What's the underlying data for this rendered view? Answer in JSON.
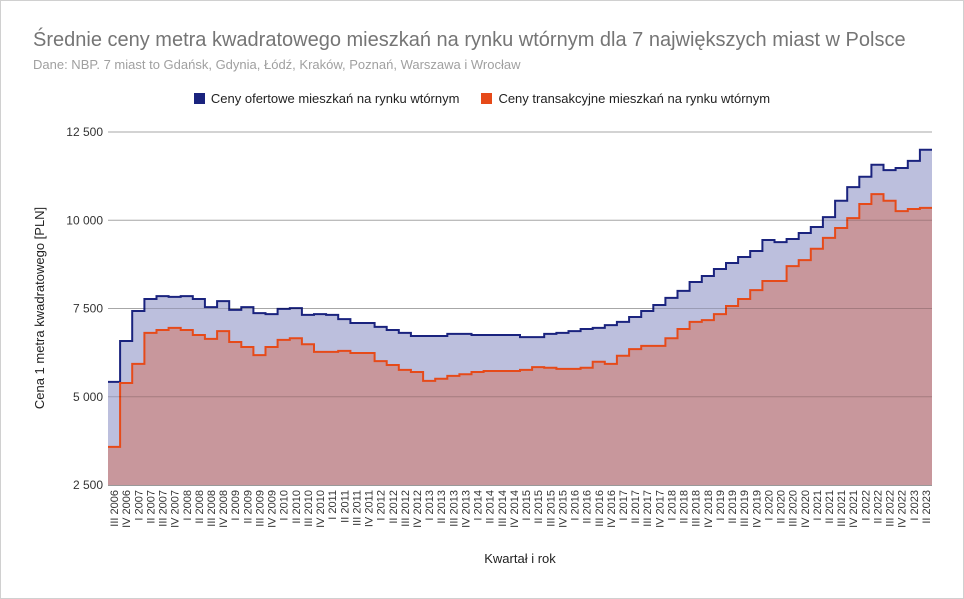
{
  "chart_data": {
    "type": "area",
    "step": true,
    "title": "Średnie ceny metra kwadratowego mieszkań na rynku wtórnym dla 7 największych miast w Polsce",
    "subtitle": "Dane: NBP. 7 miast to Gdańsk, Gdynia, Łódź, Kraków, Poznań, Warszawa i Wrocław",
    "xlabel": "Kwartał i rok",
    "ylabel": "Cena 1 metra kwadratowego [PLN]",
    "ylim": [
      2500,
      12500
    ],
    "yticks": [
      2500,
      5000,
      7500,
      10000,
      12500
    ],
    "ytick_labels": [
      "2 500",
      "5 000",
      "7 500",
      "10 000",
      "12 500"
    ],
    "grid": true,
    "legend_position": "top",
    "categories": [
      "III 2006",
      "IV 2006",
      "I 2007",
      "II 2007",
      "III 2007",
      "IV 2007",
      "I 2008",
      "II 2008",
      "III 2008",
      "IV 2008",
      "I 2009",
      "II 2009",
      "III 2009",
      "IV 2009",
      "I 2010",
      "II 2010",
      "III 2010",
      "IV 2010",
      "I 2011",
      "II 2011",
      "III 2011",
      "IV 2011",
      "I 2012",
      "II 2012",
      "III 2012",
      "IV 2012",
      "I 2013",
      "II 2013",
      "III 2013",
      "IV 2013",
      "I 2014",
      "II 2014",
      "III 2014",
      "IV 2014",
      "I 2015",
      "II 2015",
      "III 2015",
      "IV 2015",
      "I 2016",
      "II 2016",
      "III 2016",
      "IV 2016",
      "I 2017",
      "II 2017",
      "III 2017",
      "IV 2017",
      "I 2018",
      "II 2018",
      "III 2018",
      "IV 2018",
      "I 2019",
      "II 2019",
      "III 2019",
      "IV 2019",
      "I 2020",
      "II 2020",
      "III 2020",
      "IV 2020",
      "I 2021",
      "II 2021",
      "III 2021",
      "IV 2021",
      "I 2022",
      "II 2022",
      "III 2022",
      "IV 2022",
      "I 2023",
      "II 2023"
    ],
    "series": [
      {
        "name": "Ceny ofertowe mieszkań na rynku wtórnym",
        "color": "#1a237e",
        "fill": "#bcbfdd",
        "values": [
          5420,
          6580,
          7430,
          7770,
          7850,
          7830,
          7850,
          7770,
          7540,
          7710,
          7460,
          7540,
          7370,
          7340,
          7490,
          7510,
          7320,
          7340,
          7320,
          7200,
          7090,
          7090,
          6980,
          6890,
          6810,
          6720,
          6720,
          6720,
          6780,
          6780,
          6750,
          6750,
          6750,
          6750,
          6690,
          6690,
          6780,
          6810,
          6860,
          6920,
          6950,
          7030,
          7120,
          7260,
          7430,
          7600,
          7800,
          8000,
          8250,
          8420,
          8620,
          8790,
          8960,
          9130,
          9440,
          9380,
          9470,
          9640,
          9810,
          10090,
          10550,
          10940,
          11230,
          11570,
          11420,
          11480,
          11680,
          12000
        ]
      },
      {
        "name": "Ceny transakcyjne mieszkań na rynku wtórnym",
        "color": "#e64a19",
        "fill": "#c8979c",
        "values": [
          3580,
          5390,
          5930,
          6810,
          6890,
          6950,
          6890,
          6750,
          6640,
          6860,
          6550,
          6410,
          6180,
          6410,
          6610,
          6660,
          6490,
          6270,
          6270,
          6300,
          6240,
          6240,
          6010,
          5900,
          5760,
          5700,
          5450,
          5510,
          5590,
          5640,
          5700,
          5730,
          5730,
          5730,
          5760,
          5840,
          5820,
          5790,
          5790,
          5820,
          5990,
          5930,
          6160,
          6350,
          6440,
          6440,
          6660,
          6920,
          7120,
          7170,
          7340,
          7570,
          7770,
          8020,
          8280,
          8280,
          8700,
          8870,
          9190,
          9500,
          9780,
          10060,
          10460,
          10740,
          10550,
          10260,
          10320,
          10350
        ]
      }
    ]
  }
}
